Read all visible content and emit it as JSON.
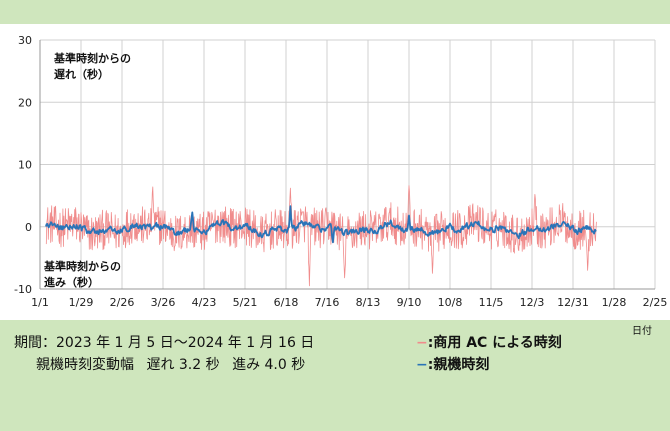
{
  "chart_data": {
    "type": "line",
    "x_axis": {
      "unit": "日付",
      "ticks": [
        "1/1",
        "1/29",
        "2/26",
        "3/26",
        "4/23",
        "5/21",
        "6/18",
        "7/16",
        "8/13",
        "9/10",
        "10/8",
        "11/5",
        "12/3",
        "12/31",
        "1/28",
        "2/25"
      ]
    },
    "y_axis": {
      "range": [
        -10,
        30
      ],
      "ticks": [
        -10,
        0,
        10,
        20,
        30
      ],
      "grid": true
    },
    "annotations": {
      "top": [
        "基準時刻からの",
        "遅れ（秒）"
      ],
      "bottom": [
        "基準時刻からの",
        "進み（秒）"
      ]
    },
    "series": [
      {
        "name": "商用 AC による時刻",
        "color": "#f08c8c",
        "legend_label": "−:商用 AC による時刻",
        "start_day": 4,
        "end_day": 380,
        "mean_offset": -0.3,
        "noise_amplitude": 3.2,
        "spikes": [
          {
            "day": 77,
            "value": 6.4
          },
          {
            "day": 171,
            "value": 6.2
          },
          {
            "day": 184,
            "value": -9.5
          },
          {
            "day": 208,
            "value": -8.2
          },
          {
            "day": 252,
            "value": 6.6
          },
          {
            "day": 268,
            "value": -7.5
          },
          {
            "day": 338,
            "value": 5.2
          },
          {
            "day": 374,
            "value": -7.0
          }
        ]
      },
      {
        "name": "親機時刻",
        "color": "#2a74b8",
        "legend_label": "−:親機時刻",
        "start_day": 4,
        "end_day": 380,
        "mean_offset": -0.3,
        "noise_amplitude": 1.0,
        "spikes": [
          {
            "day": 104,
            "value": 2.3
          },
          {
            "day": 171,
            "value": 3.3
          },
          {
            "day": 200,
            "value": -2.5
          },
          {
            "day": 252,
            "value": 1.8
          }
        ]
      }
    ]
  },
  "footer": {
    "period": "期間：2023 年 1 月 5 日～2024 年 1 月 16 日",
    "variation_title": "親機時刻変動幅",
    "variation_delay": "遅れ 3.2 秒",
    "variation_advance": "進み 4.0 秒",
    "legend_ac": "−:商用 AC による時刻",
    "legend_master": "−:親機時刻",
    "color_ac": "#f08c8c",
    "color_master": "#2a74b8"
  }
}
